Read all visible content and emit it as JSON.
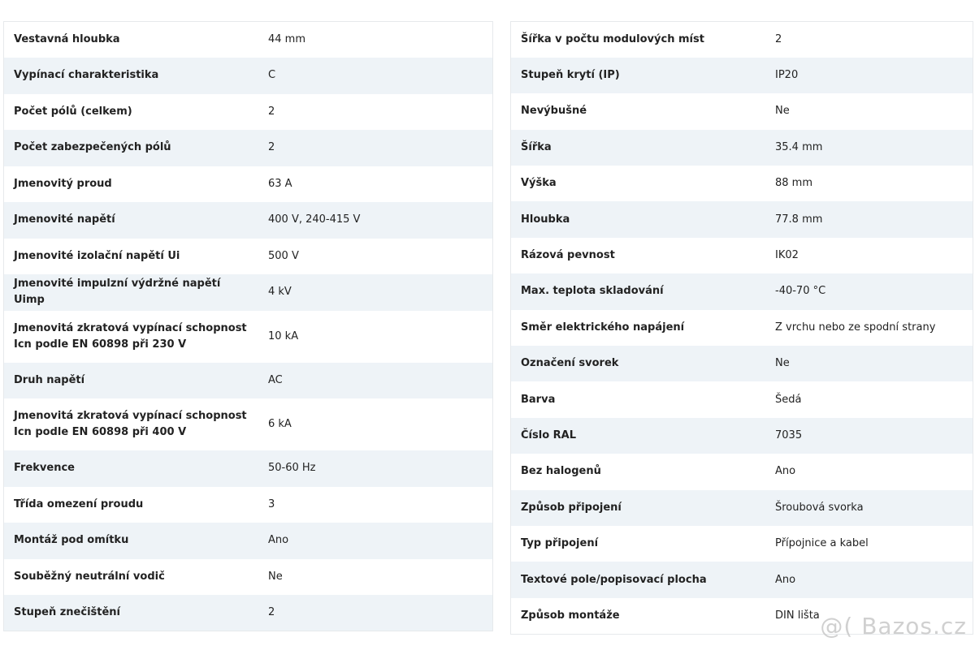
{
  "left": {
    "rows": [
      [
        "Vestavná hloubka",
        "44 mm"
      ],
      [
        "Vypínací charakteristika",
        "C"
      ],
      [
        "Počet pólů (celkem)",
        "2"
      ],
      [
        "Počet zabezpečených pólů",
        "2"
      ],
      [
        "Jmenovitý proud",
        "63 A"
      ],
      [
        "Jmenovité napětí",
        "400 V, 240-415 V"
      ],
      [
        "Jmenovité izolační napětí Ui",
        "500 V"
      ],
      [
        "Jmenovité impulzní výdržné napětí Uimp",
        "4 kV"
      ],
      [
        "Jmenovitá zkratová vypínací schopnost Icn podle EN 60898 při 230 V",
        "10 kA"
      ],
      [
        "Druh napětí",
        "AC"
      ],
      [
        "Jmenovitá zkratová vypínací schopnost Icn podle EN 60898 při 400 V",
        "6 kA"
      ],
      [
        "Frekvence",
        "50-60 Hz"
      ],
      [
        "Třída omezení proudu",
        "3"
      ],
      [
        "Montáž pod omítku",
        "Ano"
      ],
      [
        "Souběžný neutrální vodič",
        "Ne"
      ],
      [
        "Stupeň znečištění",
        "2"
      ]
    ]
  },
  "right": {
    "rows": [
      [
        "Šířka v počtu modulových míst",
        "2"
      ],
      [
        "Stupeň krytí (IP)",
        "IP20"
      ],
      [
        "Nevýbušné",
        "Ne"
      ],
      [
        "Šířka",
        "35.4 mm"
      ],
      [
        "Výška",
        "88 mm"
      ],
      [
        "Hloubka",
        "77.8 mm"
      ],
      [
        "Rázová pevnost",
        "IK02"
      ],
      [
        "Max. teplota skladování",
        "-40-70 °C"
      ],
      [
        "Směr elektrického napájení",
        "Z vrchu nebo ze spodní strany"
      ],
      [
        "Označení svorek",
        "Ne"
      ],
      [
        "Barva",
        "Šedá"
      ],
      [
        "Číslo RAL",
        "7035"
      ],
      [
        "Bez halogenů",
        "Ano"
      ],
      [
        "Způsob připojení",
        "Šroubová svorka"
      ],
      [
        "Typ připojení",
        "Přípojnice a kabel"
      ],
      [
        "Textové pole/popisovací plocha",
        "Ano"
      ],
      [
        "Způsob montáže",
        "DIN lišta"
      ]
    ]
  },
  "watermark": "@( Bazos.cz"
}
